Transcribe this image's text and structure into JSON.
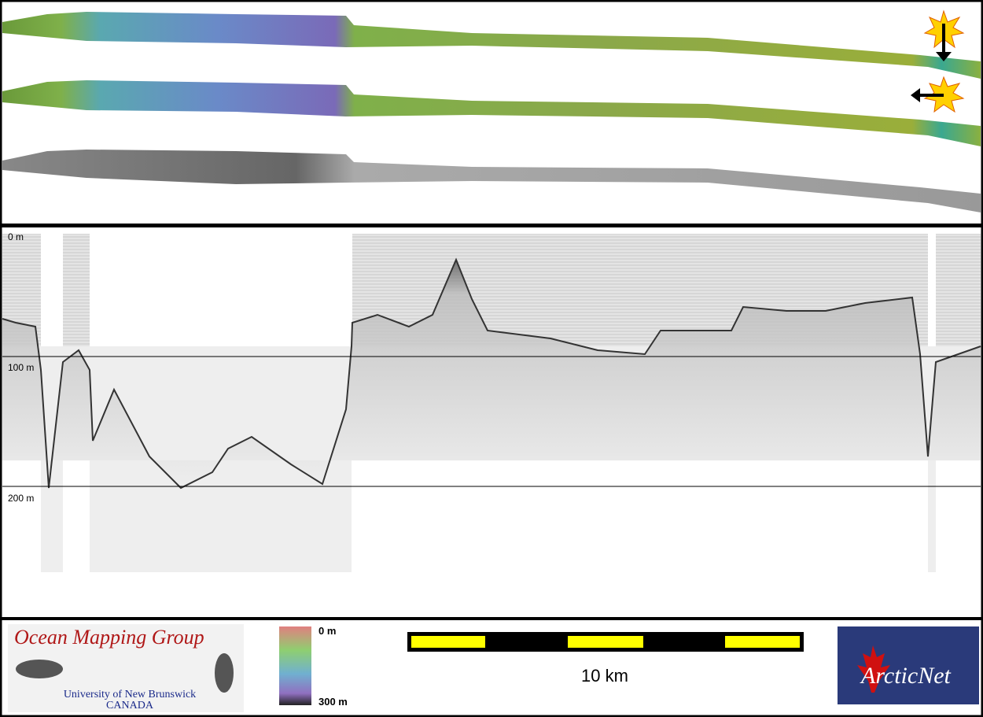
{
  "profile": {
    "depth_labels": [
      "0 m",
      "100 m",
      "200 m"
    ]
  },
  "footer": {
    "logo_left": {
      "title": "Ocean Mapping Group",
      "subtitle": "University of New Brunswick",
      "country": "CANADA"
    },
    "colorbar": {
      "top": "0 m",
      "bottom": "300 m"
    },
    "scale_bar": {
      "label": "10 km"
    },
    "logo_right": {
      "title": "ArcticNet"
    }
  }
}
